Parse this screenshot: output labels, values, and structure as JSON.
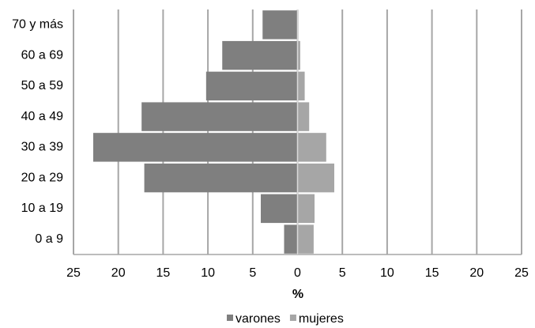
{
  "chart_data": {
    "type": "pyramid",
    "x_label": "%",
    "categories": [
      "0 a 9",
      "10 a 19",
      "20 a 29",
      "30 a 39",
      "40 a 49",
      "50 a 59",
      "60 a 69",
      "70 y más"
    ],
    "series": [
      {
        "name": "varones",
        "color": "#7f7f7f",
        "values": [
          -1.5,
          -4.1,
          -17.1,
          -22.8,
          -17.4,
          -10.2,
          -8.4,
          -3.9
        ]
      },
      {
        "name": "mujeres",
        "color": "#a6a6a6",
        "values": [
          1.8,
          1.9,
          4.1,
          3.2,
          1.3,
          0.8,
          0.3,
          0.1
        ]
      }
    ],
    "xlim": [
      -25,
      25
    ],
    "xticks": [
      {
        "value": -25,
        "label": "25"
      },
      {
        "value": -20,
        "label": "20"
      },
      {
        "value": -15,
        "label": "15"
      },
      {
        "value": -10,
        "label": "10"
      },
      {
        "value": -5,
        "label": "5"
      },
      0,
      5,
      10,
      15,
      20,
      25
    ],
    "grid": true
  }
}
